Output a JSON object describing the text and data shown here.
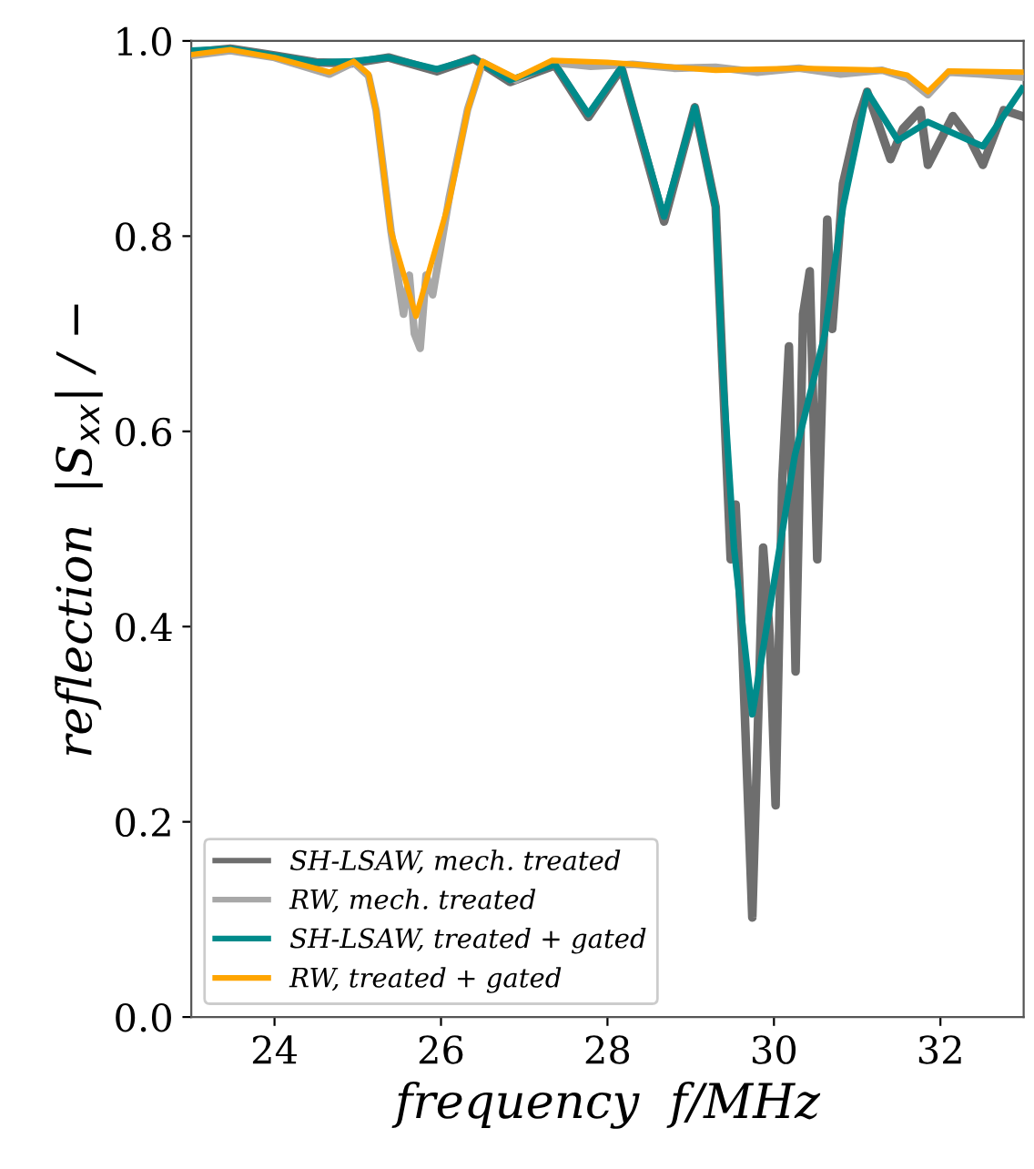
{
  "chart_data": {
    "type": "line",
    "xlabel": "frequency  f/MHz",
    "ylabel": "reflection  |S$_{xx}$| / −",
    "xlim": [
      23,
      33
    ],
    "ylim": [
      0,
      1
    ],
    "xticks": [
      24,
      26,
      28,
      30,
      32
    ],
    "yticks": [
      {
        "value": 0,
        "label": "0.0"
      },
      {
        "value": 0.2,
        "label": "0.2"
      },
      {
        "value": 0.4,
        "label": "0.4"
      },
      {
        "value": 0.6,
        "label": "0.6"
      },
      {
        "value": 0.8,
        "label": "0.8"
      },
      {
        "value": 1,
        "label": "1.0"
      }
    ],
    "grid": false,
    "legend": "bottom left",
    "marker": "none",
    "line_style": "solid",
    "series": [
      {
        "name": "SH-LSAW, mech. treated",
        "color": "#6e6e6e",
        "x": [
          23.0,
          23.47,
          24.0,
          24.5,
          24.93,
          25.37,
          25.95,
          26.39,
          26.83,
          27.37,
          27.77,
          28.17,
          28.68,
          29.05,
          29.3,
          29.48,
          29.54,
          29.62,
          29.74,
          29.87,
          29.95,
          30.02,
          30.1,
          30.18,
          30.26,
          30.35,
          30.43,
          30.52,
          30.64,
          30.7,
          30.83,
          31.0,
          31.12,
          31.4,
          31.55,
          31.76,
          31.85,
          32.15,
          32.35,
          32.51,
          32.76,
          32.98
        ],
        "values": [
          0.988,
          0.992,
          0.985,
          0.978,
          0.977,
          0.983,
          0.969,
          0.982,
          0.958,
          0.975,
          0.922,
          0.972,
          0.815,
          0.932,
          0.83,
          0.469,
          0.525,
          0.38,
          0.102,
          0.481,
          0.39,
          0.217,
          0.55,
          0.687,
          0.354,
          0.72,
          0.764,
          0.469,
          0.817,
          0.705,
          0.854,
          0.917,
          0.948,
          0.879,
          0.91,
          0.929,
          0.873,
          0.923,
          0.9,
          0.873,
          0.929,
          0.923
        ]
      },
      {
        "name": "RW, mech. treated",
        "color": "#a8a8a8",
        "x": [
          23.0,
          23.47,
          24.0,
          24.66,
          24.95,
          25.13,
          25.22,
          25.4,
          25.55,
          25.62,
          25.68,
          25.75,
          25.82,
          25.9,
          26.0,
          26.1,
          26.32,
          26.5,
          26.9,
          27.33,
          27.8,
          28.3,
          28.8,
          29.3,
          29.8,
          30.3,
          30.8,
          31.3,
          31.6,
          31.85,
          32.1,
          32.5,
          32.98
        ],
        "values": [
          0.985,
          0.99,
          0.983,
          0.966,
          0.978,
          0.964,
          0.929,
          0.805,
          0.72,
          0.76,
          0.7,
          0.685,
          0.76,
          0.74,
          0.79,
          0.84,
          0.93,
          0.978,
          0.96,
          0.978,
          0.974,
          0.976,
          0.972,
          0.973,
          0.968,
          0.972,
          0.966,
          0.97,
          0.962,
          0.945,
          0.968,
          0.966,
          0.963
        ]
      },
      {
        "name": "SH-LSAW, treated + gated",
        "color": "#008b8b",
        "x": [
          23.0,
          23.47,
          24.0,
          24.5,
          24.93,
          25.37,
          25.95,
          26.39,
          26.83,
          27.37,
          27.77,
          28.17,
          28.68,
          29.05,
          29.3,
          29.38,
          29.52,
          29.74,
          30.25,
          30.61,
          30.83,
          31.12,
          31.49,
          31.85,
          32.51,
          32.98
        ],
        "values": [
          0.99,
          0.992,
          0.985,
          0.978,
          0.979,
          0.983,
          0.971,
          0.982,
          0.96,
          0.976,
          0.925,
          0.973,
          0.82,
          0.932,
          0.83,
          0.668,
          0.481,
          0.31,
          0.575,
          0.699,
          0.83,
          0.948,
          0.898,
          0.917,
          0.892,
          0.951
        ]
      },
      {
        "name": "RW, treated + gated",
        "color": "#ffa500",
        "x": [
          23.0,
          23.47,
          24.0,
          24.66,
          24.95,
          25.13,
          25.22,
          25.4,
          25.7,
          26.1,
          26.32,
          26.5,
          26.9,
          27.33,
          28.0,
          29.3,
          30.3,
          31.3,
          31.6,
          31.85,
          32.1,
          32.98
        ],
        "values": [
          0.986,
          0.991,
          0.983,
          0.968,
          0.979,
          0.966,
          0.929,
          0.805,
          0.718,
          0.836,
          0.929,
          0.979,
          0.962,
          0.98,
          0.978,
          0.97,
          0.972,
          0.97,
          0.965,
          0.948,
          0.969,
          0.968
        ]
      }
    ]
  }
}
